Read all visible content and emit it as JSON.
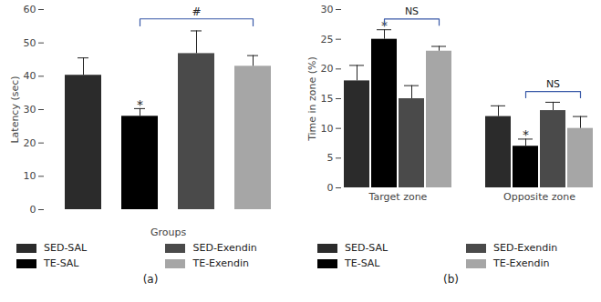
{
  "chart_data": [
    {
      "type": "bar",
      "panel_label": "(a)",
      "x_label": "Groups",
      "y_label": "Latency (sec)",
      "categories": [
        "SED-SAL",
        "TE-SAL",
        "SED-Exendin",
        "TE-Exendin"
      ],
      "values": [
        40.3,
        28,
        46.8,
        43
      ],
      "errors": [
        5.2,
        2.3,
        6.8,
        3.2
      ],
      "colors": [
        "#2b2b2b",
        "#000000",
        "#4a4a4a",
        "#a6a6a6"
      ],
      "ylim": [
        0,
        60
      ],
      "yticks": [
        0,
        10,
        20,
        30,
        40,
        50,
        60
      ],
      "grid": false,
      "legend": "bottom",
      "tick_labels": "y",
      "annotations": [
        {
          "text": "*",
          "category": "TE-SAL"
        },
        {
          "text": "#",
          "from": "TE-SAL",
          "to": "TE-Exendin"
        }
      ]
    },
    {
      "type": "bar",
      "panel_label": "(b)",
      "y_label": "Time in zone (%)",
      "categories": [
        "Target zone",
        "Opposite zone"
      ],
      "series": [
        {
          "name": "SED-SAL",
          "color": "#2b2b2b",
          "values": [
            18,
            12
          ],
          "errors": [
            2.6,
            1.8
          ]
        },
        {
          "name": "TE-SAL",
          "color": "#000000",
          "values": [
            25,
            7
          ],
          "errors": [
            1.6,
            1.2
          ]
        },
        {
          "name": "SED-Exendin",
          "color": "#4a4a4a",
          "values": [
            15,
            13
          ],
          "errors": [
            2.2,
            1.4
          ]
        },
        {
          "name": "TE-Exendin",
          "color": "#a6a6a6",
          "values": [
            23,
            10
          ],
          "errors": [
            0.8,
            2
          ]
        }
      ],
      "ylim": [
        0,
        30
      ],
      "yticks": [
        0,
        5,
        10,
        15,
        20,
        25,
        30
      ],
      "grid": false,
      "legend": "bottom",
      "annotations": [
        {
          "text": "*",
          "category": "Target zone",
          "series": "TE-SAL"
        },
        {
          "text": "*",
          "category": "Opposite zone",
          "series": "TE-SAL"
        },
        {
          "text": "NS",
          "category": "Target zone",
          "from": "TE-SAL",
          "to": "TE-Exendin"
        },
        {
          "text": "NS",
          "category": "Opposite zone",
          "from": "TE-SAL",
          "to": "TE-Exendin"
        }
      ]
    }
  ]
}
